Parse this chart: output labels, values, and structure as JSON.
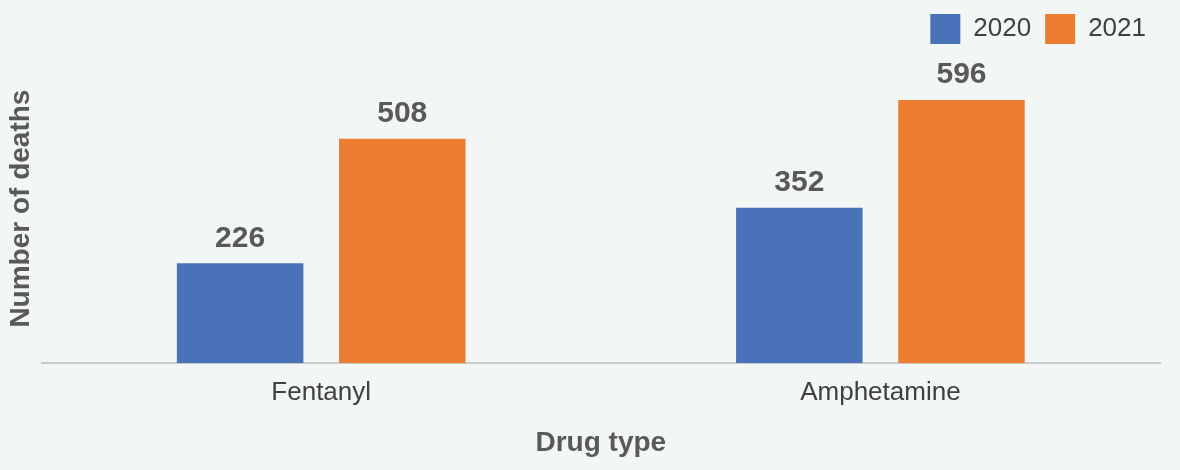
{
  "chart_data": {
    "type": "bar",
    "xlabel": "Drug type",
    "ylabel": "Number of deaths",
    "categories": [
      "Fentanyl",
      "Amphetamine"
    ],
    "series": [
      {
        "name": "2020",
        "color": "#4a72b8",
        "values": [
          226,
          352
        ]
      },
      {
        "name": "2021",
        "color": "#ed7d31",
        "values": [
          508,
          596
        ]
      }
    ],
    "data_labels": true,
    "legend": "top right",
    "grid": false,
    "tick_labels": "x"
  }
}
